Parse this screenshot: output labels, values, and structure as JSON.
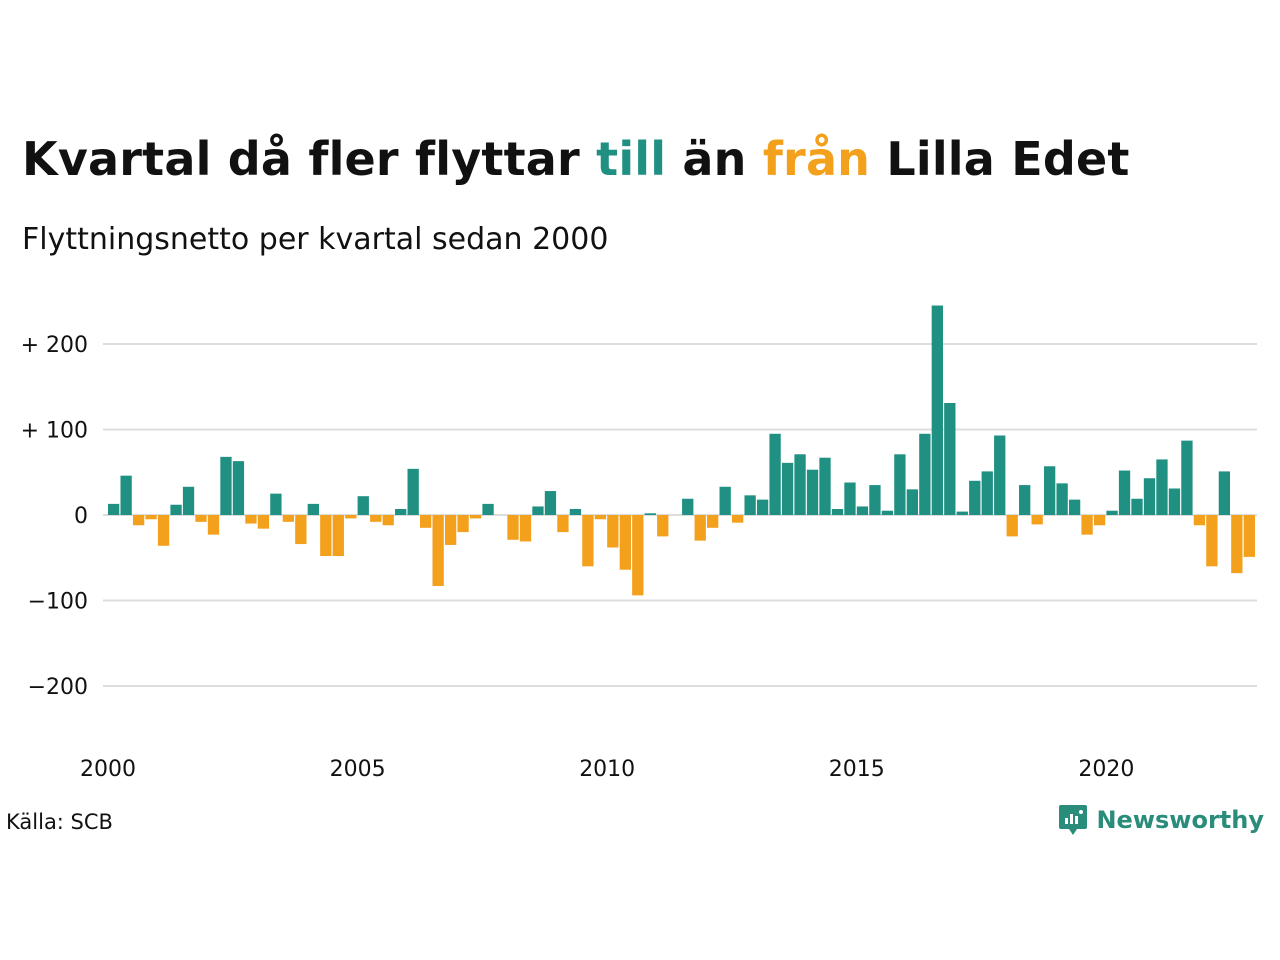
{
  "header": {
    "title_parts": [
      "Kvartal då fler flyttar ",
      "till",
      " än ",
      "från",
      " Lilla Edet"
    ],
    "subtitle": "Flyttningsnetto per kvartal sedan 2000"
  },
  "colors": {
    "positive": "#1f9082",
    "negative": "#f3a01d",
    "grid": "#dddddd",
    "brand": "#2a8c7a"
  },
  "footer": {
    "source": "Källa: SCB",
    "brand": "Newsworthy",
    "brand_icon": "chart-bubble-icon"
  },
  "chart_data": {
    "type": "bar",
    "title": "Kvartal då fler flyttar till än från Lilla Edet",
    "subtitle": "Flyttningsnetto per kvartal sedan 2000",
    "ylim": [
      -260,
      250
    ],
    "yticks": [
      {
        "value": 200,
        "label": "+ 200"
      },
      {
        "value": 100,
        "label": "+ 100"
      },
      {
        "value": 0,
        "label": "0"
      },
      {
        "value": -100,
        "label": "−100"
      },
      {
        "value": -200,
        "label": "−200"
      }
    ],
    "xticks": [
      "2000",
      "2005",
      "2010",
      "2015",
      "2020"
    ],
    "xtick_years": [
      2000,
      2005,
      2010,
      2015,
      2020
    ],
    "start_year": 2000,
    "grid": true,
    "series": [
      {
        "values": [
          13,
          46,
          -12,
          -5,
          -36,
          12,
          33,
          -8,
          -23,
          68,
          63,
          -10,
          -16,
          25,
          -8,
          -34,
          13,
          -48,
          -48,
          -4,
          22,
          -8,
          -12,
          7,
          54,
          -15,
          -83,
          -35,
          -20,
          -4,
          13,
          0,
          -29,
          -31,
          10,
          28,
          -20,
          7,
          -60,
          -5,
          -38,
          -64,
          -94,
          2,
          -25,
          0,
          19,
          -30,
          -15,
          33,
          -9,
          23,
          18,
          95,
          61,
          71,
          53,
          67,
          7,
          38,
          10,
          35,
          5,
          71,
          30,
          95,
          245,
          131,
          4,
          40,
          51,
          93,
          -25,
          35,
          -11,
          57,
          37,
          18,
          -23,
          -12,
          5,
          52,
          19,
          43,
          65,
          31,
          87,
          -12,
          -60,
          51,
          -68,
          -49
        ]
      }
    ]
  }
}
